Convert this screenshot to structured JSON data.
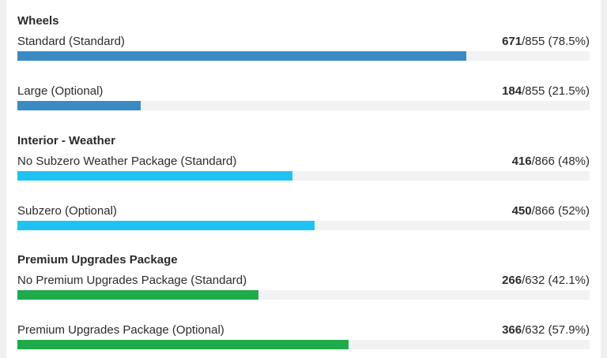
{
  "groups": [
    {
      "title": "Wheels",
      "color": "#3a8ac4",
      "options": [
        {
          "label": "Standard (Standard)",
          "count": "671",
          "total": "/855",
          "percent": " (78.5%)",
          "fraction": 0.785
        },
        {
          "label": "Large (Optional)",
          "count": "184",
          "total": "/855",
          "percent": " (21.5%)",
          "fraction": 0.215
        }
      ]
    },
    {
      "title": "Interior - Weather",
      "color": "#1ec3f4",
      "options": [
        {
          "label": "No Subzero Weather Package (Standard)",
          "count": "416",
          "total": "/866",
          "percent": " (48%)",
          "fraction": 0.48
        },
        {
          "label": "Subzero (Optional)",
          "count": "450",
          "total": "/866",
          "percent": " (52%)",
          "fraction": 0.52
        }
      ]
    },
    {
      "title": "Premium Upgrades Package",
      "color": "#1faa4b",
      "options": [
        {
          "label": "No Premium Upgrades Package (Standard)",
          "count": "266",
          "total": "/632",
          "percent": " (42.1%)",
          "fraction": 0.421
        },
        {
          "label": "Premium Upgrades Package (Optional)",
          "count": "366",
          "total": "/632",
          "percent": " (57.9%)",
          "fraction": 0.579
        }
      ]
    }
  ]
}
